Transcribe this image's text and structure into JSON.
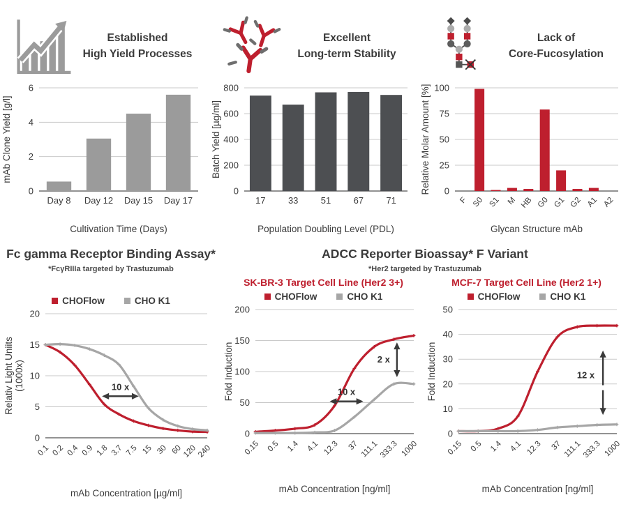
{
  "colors": {
    "red": "#be1f2e",
    "gray_bar": "#9b9b9b",
    "dark_bar": "#4d4f52",
    "gray_line": "#a6a6a6",
    "grid": "#c9c9c9",
    "axis": "#6f6f6f",
    "text": "#3b3b3b",
    "annotation": "#3a3a3a"
  },
  "top_panels": [
    {
      "icon": "growth-chart-icon",
      "title_line1": "Established",
      "title_line2": "High Yield Processes"
    },
    {
      "icon": "antibody-icon",
      "title_line1": "Excellent",
      "title_line2": "Long-term Stability"
    },
    {
      "icon": "glycan-structure-icon",
      "title_line1": "Lack of",
      "title_line2": "Core-Fucosylation"
    }
  ],
  "sections": {
    "fc_gamma": {
      "title": "Fc gamma Receptor Binding Assay*",
      "subtitle": "*FcγRIIIa targeted by Trastuzumab"
    },
    "adcc": {
      "title": "ADCC Reporter Bioassay* F Variant",
      "subtitle": "*Her2 targeted by Trastuzumab",
      "panels": [
        {
          "title": "SK-BR-3 Target Cell Line (Her2 3+)"
        },
        {
          "title": "MCF-7 Target Cell Line (Her2 1+)"
        }
      ]
    }
  },
  "legend": {
    "items": [
      {
        "label": "CHOFlow",
        "color": "#be1f2e"
      },
      {
        "label": "CHO K1",
        "color": "#a6a6a6"
      }
    ]
  },
  "chart_data": [
    {
      "id": "clone_yield",
      "type": "bar",
      "title": "Established High Yield Processes",
      "categories": [
        "Day 8",
        "Day 12",
        "Day 15",
        "Day 17"
      ],
      "values": [
        0.55,
        3.05,
        4.5,
        5.6
      ],
      "ylabel": "mAb Clone Yield [g/l]",
      "xlabel": "Cultivation Time (Days)",
      "yticks": [
        0,
        2,
        4,
        6
      ],
      "ylim": [
        0,
        6
      ],
      "bar_color": "#9b9b9b",
      "grid": true
    },
    {
      "id": "batch_yield",
      "type": "bar",
      "title": "Excellent Long-term Stability",
      "categories": [
        "17",
        "33",
        "51",
        "67",
        "71"
      ],
      "values": [
        740,
        670,
        765,
        768,
        745
      ],
      "ylabel": "Batch Yield [µg/ml]",
      "xlabel": "Population Doubling Level (PDL)",
      "yticks": [
        0,
        200,
        400,
        600,
        800
      ],
      "ylim": [
        0,
        800
      ],
      "bar_color": "#4d4f52",
      "grid": true
    },
    {
      "id": "glycan_profile",
      "type": "bar",
      "title": "Lack of Core-Fucosylation",
      "categories": [
        "F",
        "S0",
        "S1",
        "M",
        "HB",
        "G0",
        "G1",
        "G2",
        "A1",
        "A2"
      ],
      "values": [
        0,
        99,
        1,
        3,
        2,
        79,
        20,
        2,
        3,
        0
      ],
      "ylabel": "Relative Molar Amount [%]",
      "xlabel": "Glycan Structure mAb",
      "yticks": [
        0,
        25,
        50,
        75,
        100
      ],
      "ylim": [
        0,
        100
      ],
      "bar_color": "#be1f2e",
      "rotated_ticks": true,
      "grid": true
    },
    {
      "id": "fcgr_binding",
      "type": "line",
      "title": "Fc gamma Receptor Binding Assay*",
      "x_categories": [
        "0.1",
        "0.2",
        "0.4",
        "0.9",
        "1.8",
        "3.7",
        "7.5",
        "15",
        "30",
        "60",
        "120",
        "240"
      ],
      "ylabel_lines": [
        "Relativ Light Uniits",
        "(1000x)"
      ],
      "xlabel": "mAb Concentration [µg/ml]",
      "yticks": [
        0,
        5,
        10,
        15,
        20
      ],
      "ylim": [
        0,
        20
      ],
      "legend_position": "top",
      "series": [
        {
          "name": "CHOFlow",
          "color": "#be1f2e",
          "values": [
            15,
            13.8,
            11.7,
            8.6,
            5.4,
            3.8,
            2.7,
            2.0,
            1.5,
            1.2,
            1.0,
            0.95
          ]
        },
        {
          "name": "CHO K1",
          "color": "#a6a6a6",
          "values": [
            15,
            15.1,
            14.9,
            14.3,
            13.3,
            11.8,
            8.3,
            4.8,
            2.9,
            1.9,
            1.4,
            1.2
          ]
        }
      ],
      "annotations": [
        {
          "kind": "h-arrow",
          "text": "10 x",
          "x1": 3.85,
          "x2": 6.35,
          "y": 6.7
        }
      ]
    },
    {
      "id": "adcc_skbr3",
      "type": "line",
      "title": "SK-BR-3 Target Cell Line (Her2 3+)",
      "x_categories": [
        "0.15",
        "0.5",
        "1.4",
        "4.1",
        "12.3",
        "37",
        "111.1",
        "333.3",
        "1000"
      ],
      "ylabel_lines": [
        "Fold Induction"
      ],
      "xlabel": "mAb Concentration [ng/ml]",
      "yticks": [
        0,
        50,
        100,
        150,
        200
      ],
      "ylim": [
        0,
        200
      ],
      "legend_position": "top",
      "series": [
        {
          "name": "CHOFlow",
          "color": "#be1f2e",
          "values": [
            3,
            5,
            8,
            14,
            45,
            105,
            140,
            152,
            158
          ]
        },
        {
          "name": "CHO K1",
          "color": "#a6a6a6",
          "values": [
            1,
            1,
            1,
            2,
            5,
            27,
            55,
            80,
            80
          ]
        }
      ],
      "annotations": [
        {
          "kind": "h-arrow",
          "text": "10 x",
          "x1": 3.75,
          "x2": 5.45,
          "y": 52
        },
        {
          "kind": "v-arrow",
          "text": "2 x",
          "x": 7.15,
          "y1": 91,
          "y2": 147
        }
      ]
    },
    {
      "id": "adcc_mcf7",
      "type": "line",
      "title": "MCF-7 Target Cell Line (Her2 1+)",
      "x_categories": [
        "0.15",
        "0.5",
        "1.4",
        "4.1",
        "12.3",
        "37",
        "111.1",
        "333.3",
        "1000"
      ],
      "ylabel_lines": [
        "Fold Induction"
      ],
      "xlabel": "mAb Concentration [ng/ml]",
      "yticks": [
        0,
        10,
        20,
        30,
        40,
        50
      ],
      "ylim": [
        0,
        50
      ],
      "legend_position": "top",
      "series": [
        {
          "name": "CHOFlow",
          "color": "#be1f2e",
          "values": [
            1,
            1,
            2,
            7,
            25,
            39,
            43,
            43.5,
            43.5
          ]
        },
        {
          "name": "CHO K1",
          "color": "#a6a6a6",
          "values": [
            1,
            1,
            1,
            1,
            1.5,
            2.5,
            3,
            3.5,
            3.7
          ]
        }
      ],
      "annotations": [
        {
          "kind": "v-split-arrow",
          "text": "12 x",
          "x": 7.3,
          "up_y1": 19.5,
          "up_y2": 33.5,
          "down_y1": 17.5,
          "down_y2": 7.5,
          "text_y": 23.5
        }
      ]
    }
  ]
}
